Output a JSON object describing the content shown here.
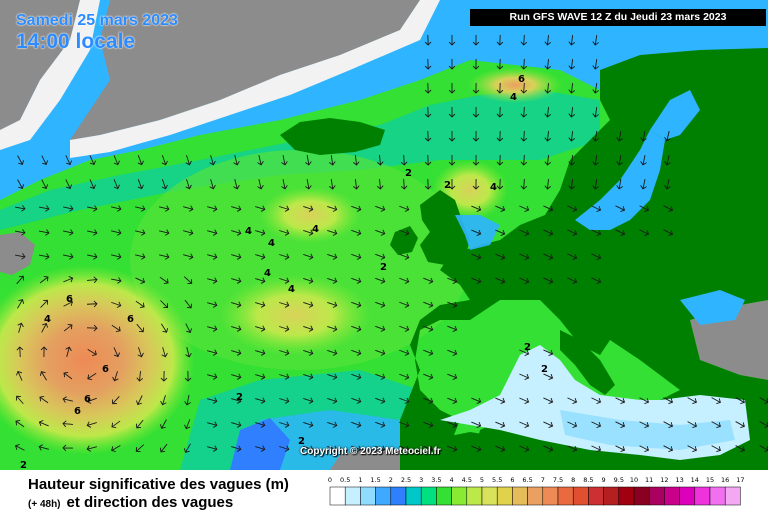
{
  "header": {
    "date": "Samedi 25 mars 2023",
    "time": "14:00 locale",
    "run": "Run GFS WAVE 12 Z du Jeudi 23 mars 2023"
  },
  "copyright": "Copyright © 2023 Meteociel.fr",
  "footer": {
    "title": "Hauteur significative des vagues (m)",
    "lead": "(+ 48h)",
    "subtitle": "et direction des vagues"
  },
  "legend": {
    "labels": [
      "0",
      "0.5",
      "1",
      "1.5",
      "2",
      "2.5",
      "3",
      "3.5",
      "4",
      "4.5",
      "5",
      "5.5",
      "6",
      "6.5",
      "7",
      "7.5",
      "8",
      "8.5",
      "9",
      "9.5",
      "10",
      "11",
      "12",
      "13",
      "14",
      "15",
      "16",
      "17"
    ],
    "colors": [
      "#ffffff",
      "#c6f0ff",
      "#8fdcff",
      "#3fa9ff",
      "#2f7fff",
      "#00c8c8",
      "#00e080",
      "#33e033",
      "#88ea33",
      "#bde84a",
      "#d8e25a",
      "#e0d24a",
      "#e4bd5a",
      "#eaa060",
      "#ee8a55",
      "#e86a3e",
      "#e05030",
      "#cc3030",
      "#b42020",
      "#a00010",
      "#8a0020",
      "#aa0060",
      "#c8008a",
      "#dd00bb",
      "#ee33dd",
      "#f070f0",
      "#f4a8f4"
    ]
  },
  "contour_labels": [
    {
      "text": "6"
    },
    {
      "text": "4"
    },
    {
      "text": "2"
    },
    {
      "text": "2"
    },
    {
      "text": "4"
    },
    {
      "text": "4"
    },
    {
      "text": "4"
    },
    {
      "text": "4"
    },
    {
      "text": "4"
    },
    {
      "text": "2"
    },
    {
      "text": "4"
    },
    {
      "text": "6"
    },
    {
      "text": "4"
    },
    {
      "text": "6"
    },
    {
      "text": "6"
    },
    {
      "text": "6"
    },
    {
      "text": "6"
    },
    {
      "text": "2"
    },
    {
      "text": "2"
    },
    {
      "text": "2"
    },
    {
      "text": "2"
    },
    {
      "text": "2"
    }
  ],
  "colors": {
    "land": "#008000",
    "land_outside": "#8c8c8c",
    "ice_white": "#f2f2f2",
    "sea_low": "#2fb4ff",
    "sea_mid": "#33e033",
    "sea_high": "#e4bd5a"
  }
}
